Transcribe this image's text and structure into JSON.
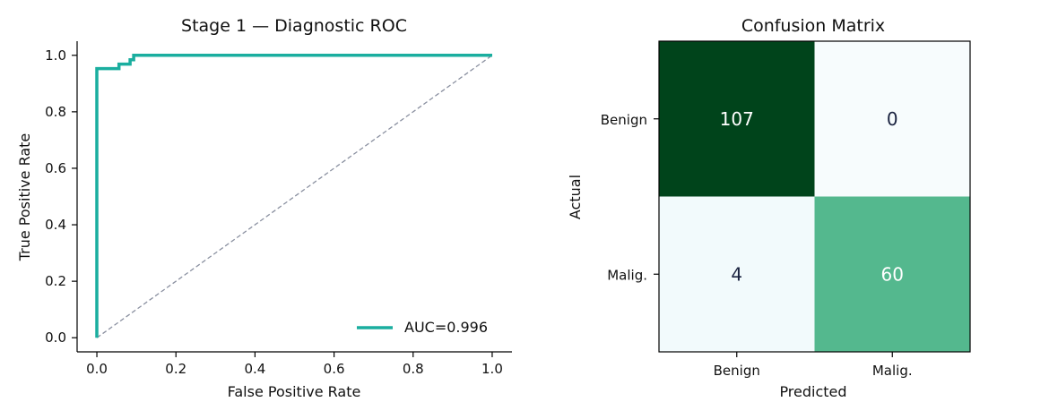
{
  "chart_data": [
    {
      "type": "line",
      "title": "Stage 1 — Diagnostic ROC",
      "xlabel": "False Positive Rate",
      "ylabel": "True Positive Rate",
      "xlim": [
        -0.05,
        1.05
      ],
      "ylim": [
        -0.05,
        1.05
      ],
      "xticks": [
        "0.0",
        "0.2",
        "0.4",
        "0.6",
        "0.8",
        "1.0"
      ],
      "yticks": [
        "0.0",
        "0.2",
        "0.4",
        "0.6",
        "0.8",
        "1.0"
      ],
      "legend_position": "lower-right",
      "grid": false,
      "series": [
        {
          "name": "AUC=0.996",
          "color": "#1aae9f",
          "x": [
            0.0,
            0.0,
            0.0,
            0.056,
            0.056,
            0.084,
            0.084,
            0.093,
            0.093,
            1.0
          ],
          "y": [
            0.0,
            0.953,
            0.953,
            0.953,
            0.969,
            0.969,
            0.984,
            0.984,
            1.0,
            1.0
          ]
        }
      ],
      "reference_line": {
        "color": "#8a90a0",
        "x": [
          0.0,
          1.0
        ],
        "y": [
          0.0,
          1.0
        ]
      }
    },
    {
      "type": "heatmap",
      "title": "Confusion Matrix",
      "xlabel": "Predicted",
      "ylabel": "Actual",
      "x_categories": [
        "Benign",
        "Malig."
      ],
      "y_categories": [
        "Benign",
        "Malig."
      ],
      "values": [
        [
          107,
          0
        ],
        [
          4,
          60
        ]
      ],
      "colormap": [
        "#f7fcfd",
        "#00441b"
      ]
    }
  ]
}
